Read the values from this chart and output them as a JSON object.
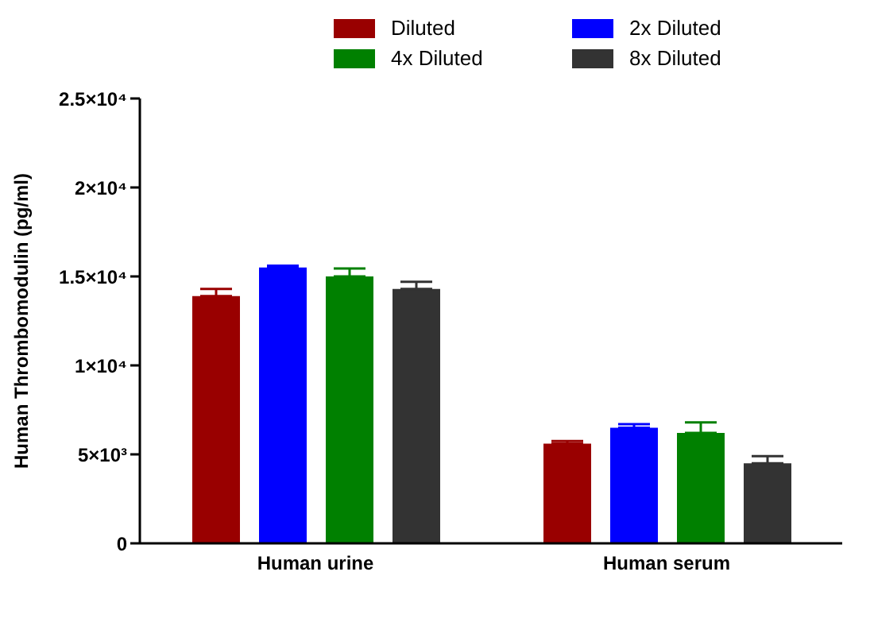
{
  "chart_data": {
    "type": "bar",
    "ylabel": "Human Thrombomodulin (pg/ml)",
    "categories": [
      "Human urine",
      "Human serum"
    ],
    "series": [
      {
        "name": "Diluted",
        "color": "#990000",
        "values": [
          13900,
          5600
        ],
        "errors": [
          [
            13900,
            14300
          ],
          [
            5600,
            5750
          ]
        ]
      },
      {
        "name": "2x Diluted",
        "color": "#0000ff",
        "values": [
          15500,
          6500
        ],
        "errors": [
          [
            15500,
            15600
          ],
          [
            6500,
            6700
          ]
        ]
      },
      {
        "name": "4x Diluted",
        "color": "#008000",
        "values": [
          15000,
          6200
        ],
        "errors": [
          [
            15000,
            15450
          ],
          [
            6200,
            6800
          ]
        ]
      },
      {
        "name": "8x Diluted",
        "color": "#333333",
        "values": [
          14300,
          4500
        ],
        "errors": [
          [
            14300,
            14700
          ],
          [
            4500,
            4900
          ]
        ]
      }
    ],
    "ylim": [
      0,
      25000
    ],
    "yticks": [
      {
        "value": 0,
        "label": "0"
      },
      {
        "value": 5000,
        "label": "5×10³"
      },
      {
        "value": 10000,
        "label": "1×10⁴"
      },
      {
        "value": 15000,
        "label": "1.5×10⁴"
      },
      {
        "value": 20000,
        "label": "2×10⁴"
      },
      {
        "value": 25000,
        "label": "2.5×10⁴"
      }
    ],
    "grid": false,
    "legend": "top"
  }
}
